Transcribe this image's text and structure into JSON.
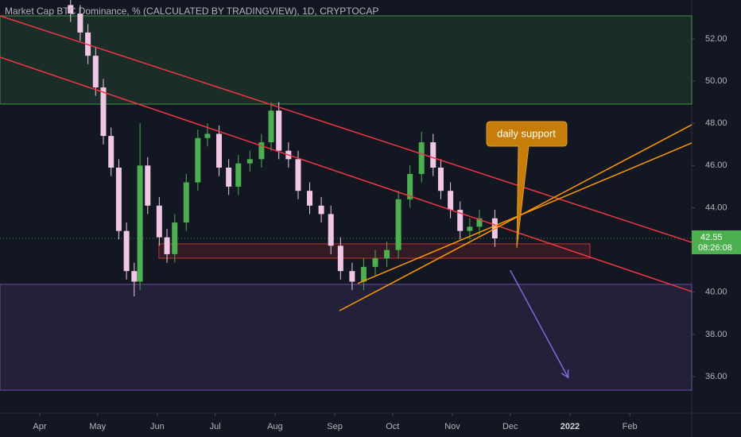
{
  "chart_data": {
    "type": "candlestick",
    "title": "Market Cap BTC Dominance, % (CALCULATED BY TRADINGVIEW), 1D, CRYPTOCAP",
    "x": [
      16,
      21,
      25,
      29,
      33,
      37,
      41,
      45,
      49,
      52,
      56,
      62,
      66,
      70,
      76,
      82,
      87,
      93,
      98,
      103,
      109,
      115,
      120,
      124,
      129,
      134,
      140,
      146,
      151,
      156,
      162,
      168,
      174,
      180,
      186,
      192,
      198,
      204,
      208,
      213,
      218,
      223,
      228,
      236
    ],
    "open": [
      53.6,
      53.2,
      52.3,
      51.2,
      49.7,
      47.4,
      45.9,
      42.9,
      41.0,
      40.5,
      46.0,
      44.1,
      42.6,
      41.8,
      43.3,
      45.2,
      47.3,
      47.5,
      45.9,
      45.0,
      46.1,
      46.3,
      47.1,
      48.6,
      46.7,
      46.3,
      44.8,
      44.1,
      43.7,
      42.2,
      41.0,
      40.5,
      41.2,
      41.6,
      42.0,
      44.4,
      45.6,
      47.1,
      45.9,
      44.8,
      43.9,
      42.9,
      43.1,
      43.5
    ],
    "high": [
      54.0,
      53.6,
      52.7,
      51.6,
      50.1,
      47.8,
      46.3,
      43.3,
      41.4,
      48.0,
      46.4,
      44.5,
      43.0,
      43.7,
      45.6,
      47.7,
      48.0,
      47.9,
      46.3,
      46.5,
      46.7,
      47.5,
      49.0,
      49.0,
      47.1,
      46.7,
      45.2,
      44.5,
      44.1,
      42.6,
      41.4,
      41.6,
      42.0,
      42.4,
      44.8,
      46.0,
      47.6,
      47.5,
      46.3,
      45.2,
      44.3,
      43.5,
      43.9,
      43.9
    ],
    "low": [
      52.8,
      51.9,
      50.8,
      49.3,
      47.0,
      45.5,
      42.5,
      40.6,
      39.8,
      40.1,
      43.7,
      42.2,
      41.4,
      41.4,
      42.9,
      44.8,
      46.9,
      45.5,
      44.6,
      44.6,
      45.7,
      45.9,
      46.7,
      46.3,
      45.9,
      44.4,
      43.7,
      43.3,
      41.8,
      40.6,
      40.1,
      40.1,
      40.8,
      41.2,
      41.6,
      44.0,
      45.2,
      45.5,
      44.4,
      43.5,
      42.5,
      42.5,
      42.7,
      42.15
    ],
    "close": [
      53.2,
      52.3,
      51.2,
      49.7,
      47.4,
      45.9,
      42.9,
      41.0,
      40.5,
      46.0,
      44.1,
      42.6,
      41.8,
      43.3,
      45.2,
      47.3,
      47.5,
      45.9,
      45.0,
      46.1,
      46.3,
      47.1,
      48.6,
      46.7,
      46.3,
      44.8,
      44.1,
      43.7,
      42.2,
      41.0,
      40.5,
      41.2,
      41.6,
      42.0,
      44.4,
      45.6,
      47.1,
      45.9,
      44.8,
      43.9,
      42.9,
      43.1,
      43.5,
      42.55
    ],
    "up_color": "#4caf50",
    "down_color": "#f0c8e6",
    "xlim": [
      -20.6,
      338.1
    ],
    "xticks": [
      {
        "value": 0,
        "label": "Apr"
      },
      {
        "value": 30,
        "label": "May"
      },
      {
        "value": 61,
        "label": "Jun"
      },
      {
        "value": 91,
        "label": "Jul"
      },
      {
        "value": 122,
        "label": "Aug"
      },
      {
        "value": 153,
        "label": "Sep"
      },
      {
        "value": 183,
        "label": "Oct"
      },
      {
        "value": 214,
        "label": "Nov"
      },
      {
        "value": 244,
        "label": "Dec"
      },
      {
        "value": 275,
        "label": "2022"
      },
      {
        "value": 306,
        "label": "Feb"
      }
    ],
    "ylim": [
      34.27,
      53.84
    ],
    "yticks": [
      {
        "value": 36,
        "label": "36.00"
      },
      {
        "value": 38,
        "label": "38.00"
      },
      {
        "value": 40,
        "label": "40.00"
      },
      {
        "value": 42,
        "label": "42.00"
      },
      {
        "value": 44,
        "label": "44.00"
      },
      {
        "value": 46,
        "label": "46.00"
      },
      {
        "value": 48,
        "label": "48.00"
      },
      {
        "value": 50,
        "label": "50.00"
      },
      {
        "value": 52,
        "label": "52.00"
      }
    ],
    "zones": [
      {
        "x": [
          -20.6,
          338.1
        ],
        "y": [
          48.91,
          53.09
        ],
        "color": "#4caf50"
      },
      {
        "x": [
          -20.6,
          338.1
        ],
        "y": [
          35.36,
          40.37
        ],
        "color": "#7e57c2"
      },
      {
        "x": [
          61.8,
          285.3
        ],
        "y": [
          41.61,
          42.29
        ],
        "color": "#e53935"
      }
    ],
    "trendlines": [
      {
        "x": [
          -20.6,
          338.1
        ],
        "y": [
          53.09,
          42.36
        ],
        "color": "#f23645"
      },
      {
        "x": [
          -20.6,
          338.1
        ],
        "y": [
          51.13,
          40.03
        ],
        "color": "#f23645"
      },
      {
        "x": [
          155.4,
          338.1
        ],
        "y": [
          39.12,
          47.93
        ],
        "color": "#ff9800"
      },
      {
        "x": [
          164.9,
          338.1
        ],
        "y": [
          40.41,
          47.07
        ],
        "color": "#ff9800"
      },
      {
        "x": [
          244,
          274
        ],
        "y": [
          41.04,
          35.96
        ],
        "color": "#7e6bd6"
      }
    ],
    "last_price": {
      "value": 42.55,
      "label": "42.55",
      "countdown": "08:26:08"
    },
    "annotation": "daily support"
  }
}
